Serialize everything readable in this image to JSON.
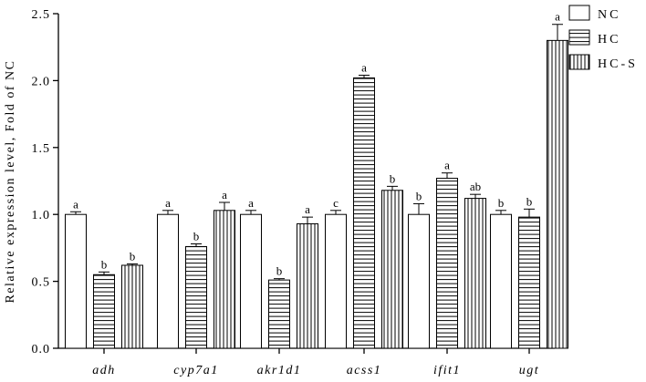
{
  "chart_data": {
    "type": "bar",
    "title": "",
    "xlabel": "",
    "ylabel": "Relative expression level, Fold of NC",
    "ylim": [
      0,
      2.5
    ],
    "yticks": [
      "0.0",
      "0.5",
      "1.0",
      "1.5",
      "2.0",
      "2.5"
    ],
    "categories": [
      "adh",
      "cyp7a1",
      "akr1d1",
      "acss1",
      "ifit1",
      "ugt"
    ],
    "legend_position": "top-right",
    "grid": false,
    "series": [
      {
        "name": "NC",
        "pattern": "none",
        "values": [
          1.0,
          1.0,
          1.0,
          1.0,
          1.0,
          1.0
        ],
        "errors": [
          0.02,
          0.03,
          0.03,
          0.03,
          0.08,
          0.03
        ],
        "letters": [
          "a",
          "a",
          "a",
          "c",
          "b",
          "b"
        ]
      },
      {
        "name": "HC",
        "pattern": "horizontal",
        "values": [
          0.55,
          0.76,
          0.51,
          2.02,
          1.27,
          0.98
        ],
        "errors": [
          0.02,
          0.02,
          0.01,
          0.02,
          0.04,
          0.06
        ],
        "letters": [
          "b",
          "b",
          "b",
          "a",
          "a",
          "b"
        ]
      },
      {
        "name": "HC-S",
        "legend_label": "HC-S",
        "pattern": "vertical",
        "values": [
          0.62,
          1.03,
          0.93,
          1.18,
          1.12,
          2.3
        ],
        "errors": [
          0.01,
          0.06,
          0.05,
          0.03,
          0.03,
          0.12
        ],
        "letters": [
          "b",
          "a",
          "a",
          "b",
          "ab",
          "a"
        ]
      }
    ]
  }
}
